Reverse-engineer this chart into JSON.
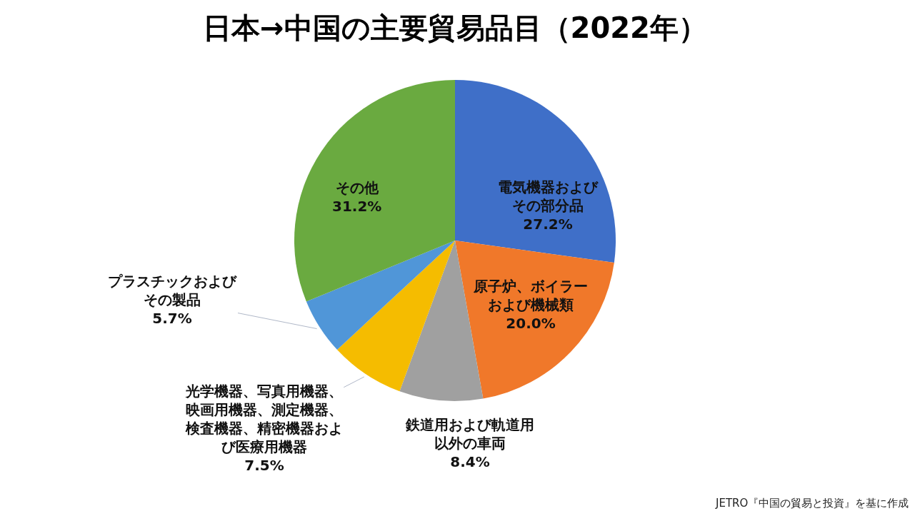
{
  "chart_data": {
    "type": "pie",
    "title": "日本→中国の主要貿易品目（2022年）",
    "categories": [
      "電気機器およびその部分品",
      "原子炉、ボイラーおよび機械類",
      "鉄道用および軌道用以外の車両",
      "光学機器、写真用機器、映画用機器、測定機器、検査機器、精密機器および医療用機器",
      "プラスチックおよびその製品",
      "その他"
    ],
    "values": [
      27.2,
      20.0,
      8.4,
      7.5,
      5.7,
      31.2
    ],
    "colors": [
      "#3f6fc8",
      "#f0782a",
      "#a0a0a0",
      "#f5bc00",
      "#5096d8",
      "#6aaa40"
    ],
    "value_labels": [
      "27.2%",
      "20.0%",
      "8.4%",
      "7.5%",
      "5.7%",
      "31.2%"
    ],
    "legend": false,
    "annotations": [
      "JETRO『中国の貿易と投資』を基に作成"
    ]
  }
}
